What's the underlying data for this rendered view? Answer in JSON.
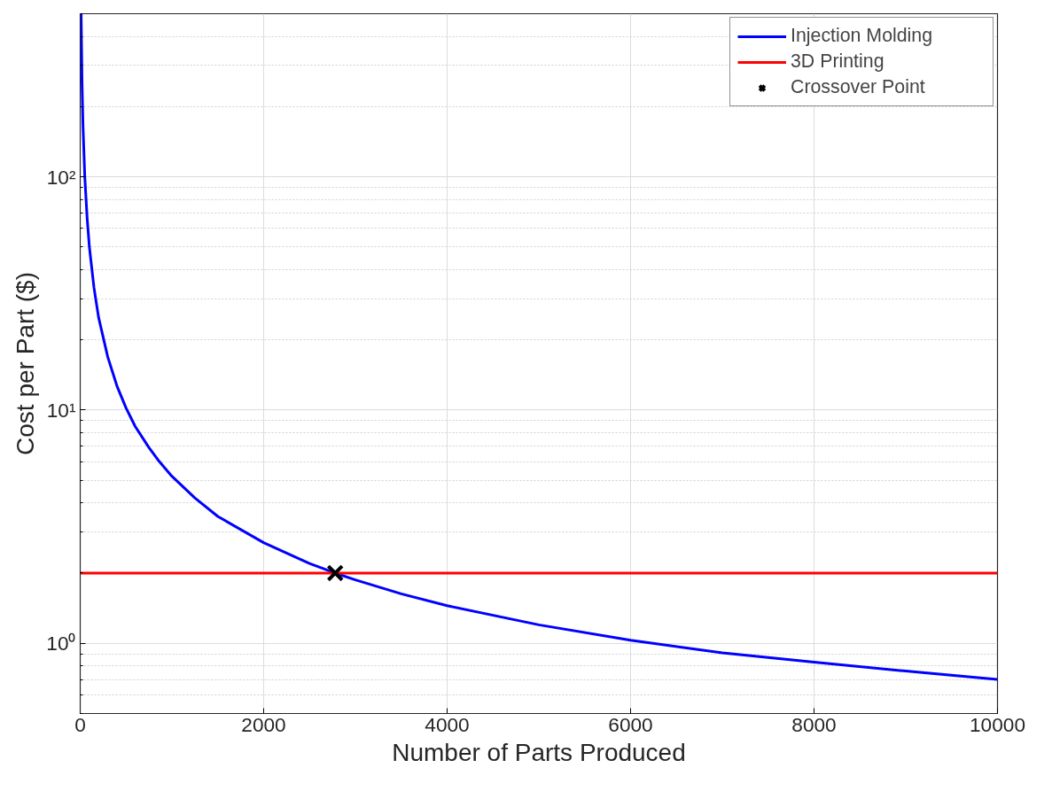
{
  "chart_data": {
    "type": "line",
    "xlabel": "Number of Parts Produced",
    "ylabel": "Cost per Part ($)",
    "xlim": [
      0,
      10000
    ],
    "ylim": [
      0.5,
      500
    ],
    "log": "y",
    "xticks": [
      0,
      2000,
      4000,
      6000,
      8000,
      10000
    ],
    "yticks": [
      {
        "value": 1,
        "label": "10⁰"
      },
      {
        "value": 10,
        "label": "10¹"
      },
      {
        "value": 100,
        "label": "10²"
      }
    ],
    "grid": true,
    "legend": "top right",
    "series": [
      {
        "name": "Injection Molding",
        "color": "#0000ff",
        "x": [
          10,
          20,
          30,
          50,
          75,
          100,
          150,
          200,
          300,
          400,
          500,
          600,
          750,
          850,
          1000,
          1250,
          1500,
          2000,
          2500,
          2780,
          3000,
          3500,
          4000,
          5000,
          6000,
          7000,
          8000,
          9000,
          10000
        ],
        "values": [
          500,
          250,
          167,
          100,
          67,
          50,
          33.5,
          25,
          16.9,
          12.7,
          10.2,
          8.5,
          6.9,
          6.1,
          5.2,
          4.2,
          3.5,
          2.7,
          2.2,
          2.0,
          1.87,
          1.63,
          1.45,
          1.2,
          1.03,
          0.91,
          0.83,
          0.76,
          0.7
        ]
      },
      {
        "name": "3D Printing",
        "color": "#ff0000",
        "x": [
          0,
          10000
        ],
        "values": [
          2,
          2
        ]
      },
      {
        "name": "Crossover Point",
        "color": "#000000",
        "type": "scatter",
        "marker": "cross",
        "x": [
          2780
        ],
        "values": [
          2
        ]
      }
    ]
  }
}
